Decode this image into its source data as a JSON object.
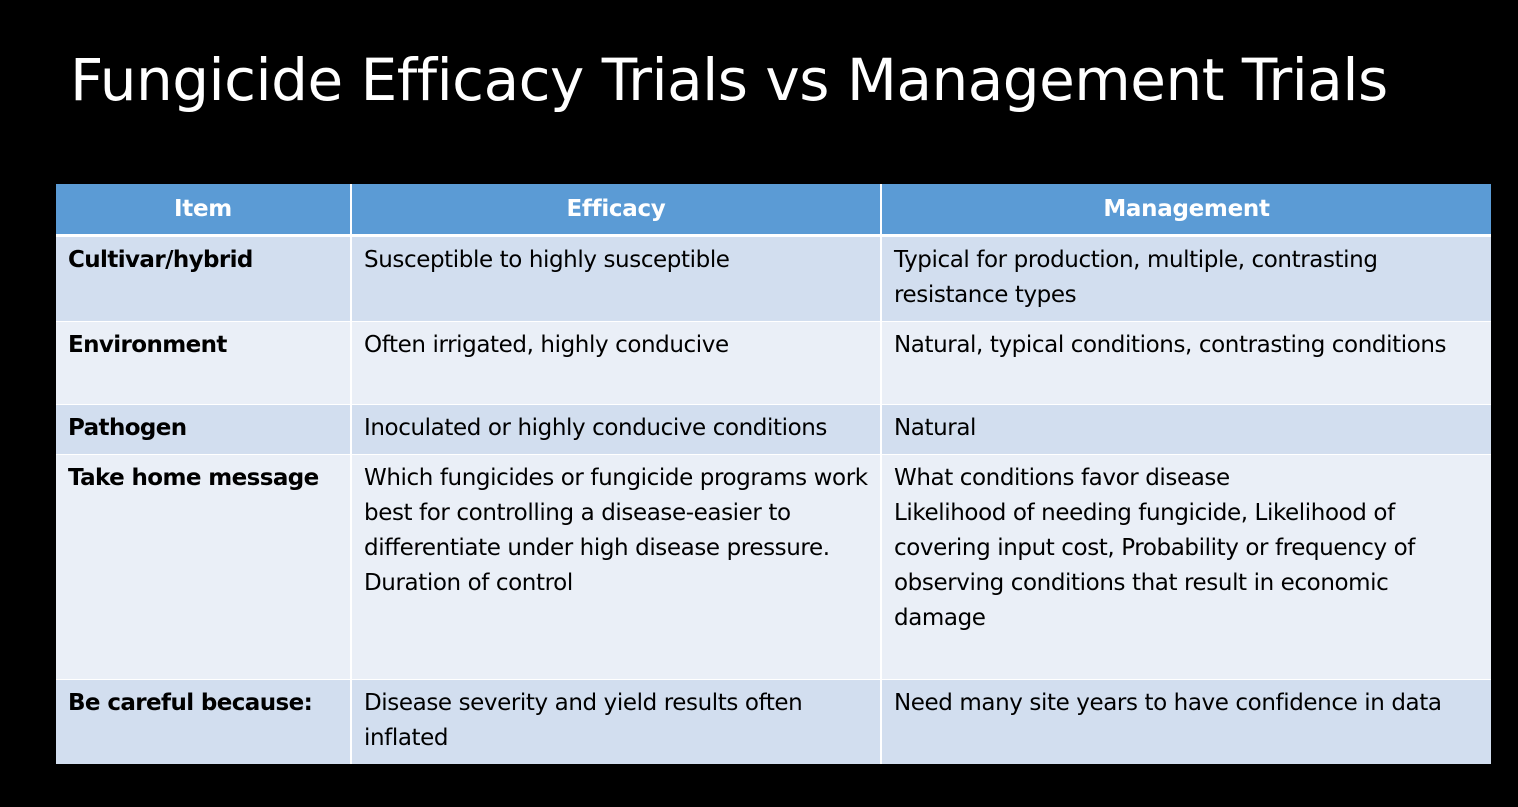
{
  "slide": {
    "title": "Fungicide Efficacy Trials vs Management Trials"
  },
  "table": {
    "headers": {
      "item": "Item",
      "efficacy": "Efficacy",
      "management": "Management"
    },
    "rows": [
      {
        "item": "Cultivar/hybrid",
        "efficacy": [
          "Susceptible to highly susceptible"
        ],
        "management": [
          "Typical for production, multiple, contrasting resistance types"
        ]
      },
      {
        "item": "Environment",
        "efficacy": [
          "Often irrigated, highly conducive"
        ],
        "management": [
          "Natural, typical conditions, contrasting conditions"
        ]
      },
      {
        "item": "Pathogen",
        "efficacy": [
          "Inoculated or highly conducive conditions"
        ],
        "management": [
          "Natural"
        ]
      },
      {
        "item": "Take home message",
        "efficacy": [
          "Which fungicides or fungicide programs work best for controlling a disease-easier to differentiate under high disease pressure.",
          "Duration of control"
        ],
        "management": [
          "What conditions favor disease",
          "Likelihood of needing fungicide, Likelihood of covering input cost, Probability or frequency of observing conditions that result in economic damage"
        ]
      },
      {
        "item": "Be careful because:",
        "efficacy": [
          "Disease severity and yield results often inflated"
        ],
        "management": [
          "Need many site years to have confidence in data"
        ]
      }
    ]
  },
  "colors": {
    "background": "#000000",
    "title_text": "#ffffff",
    "header_fill": "#5b9bd5",
    "row_odd_fill": "#d2deef",
    "row_even_fill": "#eaeff7"
  }
}
